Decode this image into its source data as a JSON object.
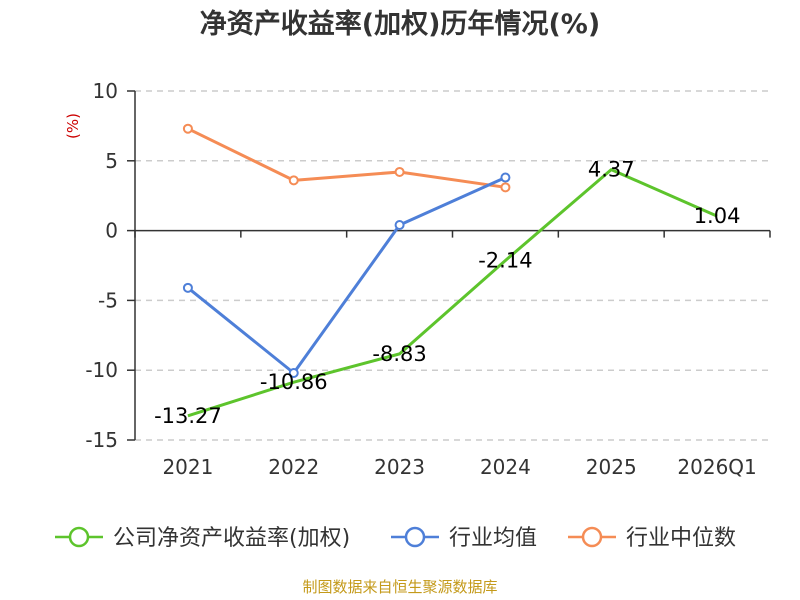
{
  "chart_data": {
    "type": "line",
    "title": "净资产收益率(加权)历年情况(%)",
    "ylabel": "(%)",
    "xlabel": "",
    "categories": [
      "2021",
      "2022",
      "2023",
      "2024",
      "2025",
      "2026Q1"
    ],
    "ylim": [
      -15,
      10
    ],
    "yticks": [
      10,
      5,
      0,
      -5,
      -10,
      -15
    ],
    "grid": true,
    "legend_position": "bottom",
    "series": [
      {
        "name": "公司净资产收益率(加权)",
        "color": "#5dc42c",
        "values": [
          -13.27,
          -10.86,
          -8.83,
          -2.14,
          4.37,
          1.04
        ],
        "labels": [
          "-13.27",
          "-10.86",
          "-8.83",
          "-2.14",
          "4.37",
          "1.04"
        ],
        "show_markers": false
      },
      {
        "name": "行业均值",
        "color": "#4e7fd8",
        "values": [
          -4.1,
          -10.2,
          0.4,
          3.8,
          null,
          null
        ],
        "show_markers": true
      },
      {
        "name": "行业中位数",
        "color": "#f58c55",
        "values": [
          7.3,
          3.6,
          4.2,
          3.1,
          null,
          null
        ],
        "show_markers": true
      }
    ]
  },
  "source": "制图数据来自恒生聚源数据库"
}
